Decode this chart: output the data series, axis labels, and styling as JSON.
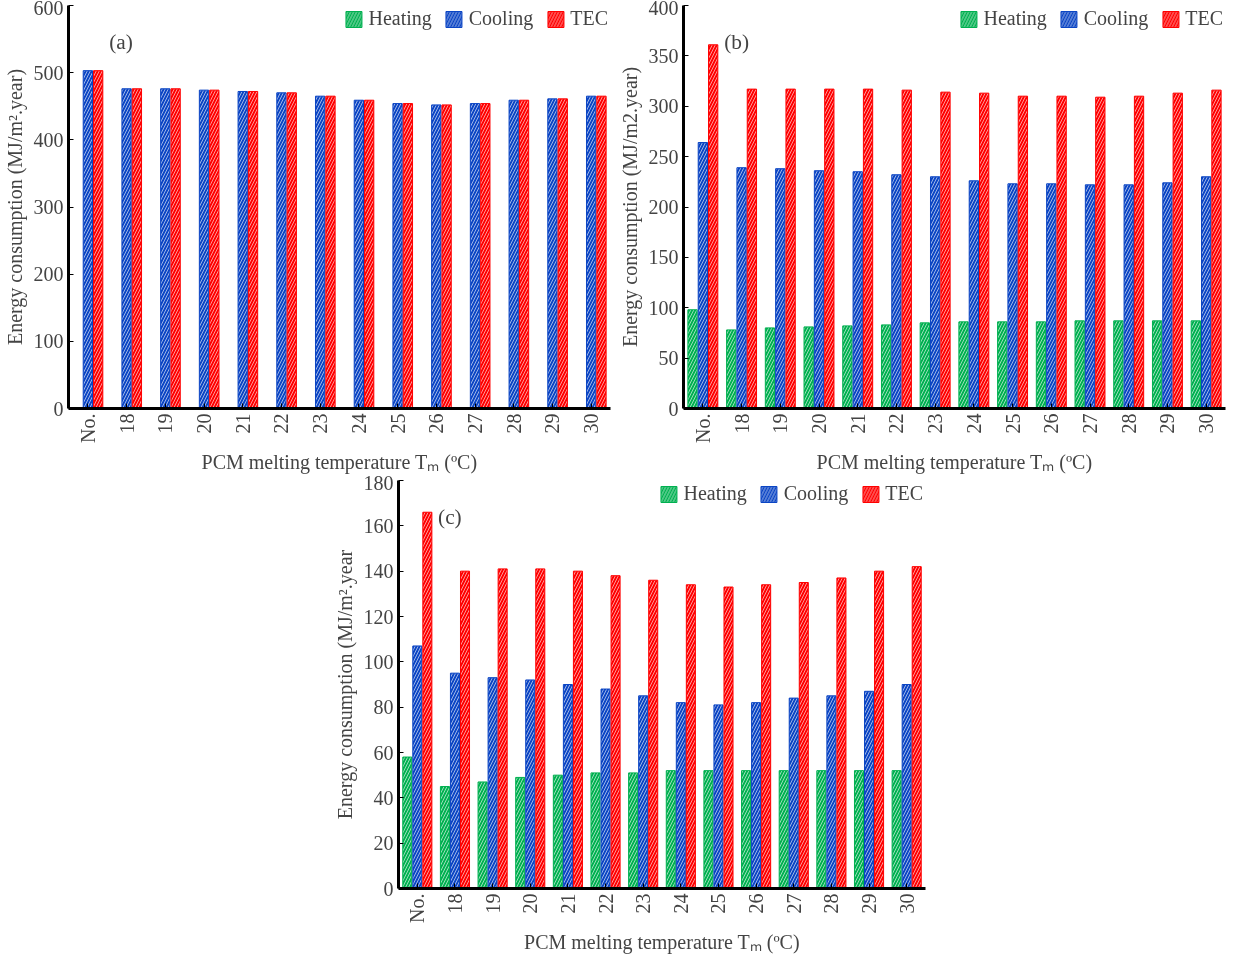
{
  "chart_data": [
    {
      "type": "bar",
      "annotations": [
        "(a)"
      ],
      "xlabel": "PCM melting temperature Tₘ (ºC)",
      "ylabel": "Energy consumption (MJ/m².year)",
      "categories": [
        "No.",
        "18",
        "19",
        "20",
        "21",
        "22",
        "23",
        "24",
        "25",
        "26",
        "27",
        "28",
        "29",
        "30"
      ],
      "ylim": [
        0,
        600
      ],
      "yticks": [
        0,
        100,
        200,
        300,
        400,
        500,
        600
      ],
      "grid": false,
      "legend": "top right",
      "series": [
        {
          "name": "Heating",
          "color": "#00b050",
          "values": [
            0,
            0,
            0,
            0,
            0,
            0,
            0,
            0,
            0,
            0,
            0,
            0,
            0,
            0
          ]
        },
        {
          "name": "Cooling",
          "color": "#0b45c4",
          "values": [
            503,
            476,
            476,
            474,
            472,
            470,
            465,
            459,
            454,
            452,
            454,
            459,
            461,
            465
          ]
        },
        {
          "name": "TEC",
          "color": "#ff0000",
          "values": [
            503,
            476,
            476,
            474,
            472,
            470,
            465,
            459,
            454,
            452,
            454,
            459,
            461,
            465
          ]
        }
      ]
    },
    {
      "type": "bar",
      "annotations": [
        "(b)"
      ],
      "xlabel": "PCM melting temperature Tₘ (ºC)",
      "ylabel": "Energy consumption (MJ/m2.year)",
      "categories": [
        "No.",
        "18",
        "19",
        "20",
        "21",
        "22",
        "23",
        "24",
        "25",
        "26",
        "27",
        "28",
        "29",
        "30"
      ],
      "ylim": [
        0,
        400
      ],
      "yticks": [
        0,
        50,
        100,
        150,
        200,
        250,
        300,
        350,
        400
      ],
      "grid": false,
      "legend": "top right",
      "series": [
        {
          "name": "Heating",
          "color": "#00b050",
          "values": [
            98,
            78,
            80,
            81,
            82,
            83,
            85,
            86,
            86,
            86,
            87,
            87,
            87,
            87
          ]
        },
        {
          "name": "Cooling",
          "color": "#0b45c4",
          "values": [
            264,
            239,
            238,
            236,
            235,
            232,
            230,
            226,
            223,
            223,
            222,
            222,
            224,
            230
          ]
        },
        {
          "name": "TEC",
          "color": "#ff0000",
          "values": [
            361,
            317,
            317,
            317,
            317,
            316,
            314,
            313,
            310,
            310,
            309,
            310,
            313,
            316
          ]
        }
      ]
    },
    {
      "type": "bar",
      "annotations": [
        "(c)"
      ],
      "xlabel": "PCM melting temperature Tₘ (ºC)",
      "ylabel": "Energy consumption (MJ/m².year",
      "categories": [
        "No.",
        "18",
        "19",
        "20",
        "21",
        "22",
        "23",
        "24",
        "25",
        "26",
        "27",
        "28",
        "29",
        "30"
      ],
      "ylim": [
        0,
        180
      ],
      "yticks": [
        0,
        20,
        40,
        60,
        80,
        100,
        120,
        140,
        160,
        180
      ],
      "grid": false,
      "legend": "top right",
      "series": [
        {
          "name": "Heating",
          "color": "#00b050",
          "values": [
            58,
            45,
            47,
            49,
            50,
            51,
            51,
            52,
            52,
            52,
            52,
            52,
            52,
            52
          ]
        },
        {
          "name": "Cooling",
          "color": "#0b45c4",
          "values": [
            107,
            95,
            93,
            92,
            90,
            88,
            85,
            82,
            81,
            82,
            84,
            85,
            87,
            90
          ]
        },
        {
          "name": "TEC",
          "color": "#ff0000",
          "values": [
            166,
            140,
            141,
            141,
            140,
            138,
            136,
            134,
            133,
            134,
            135,
            137,
            140,
            142
          ]
        }
      ]
    }
  ]
}
